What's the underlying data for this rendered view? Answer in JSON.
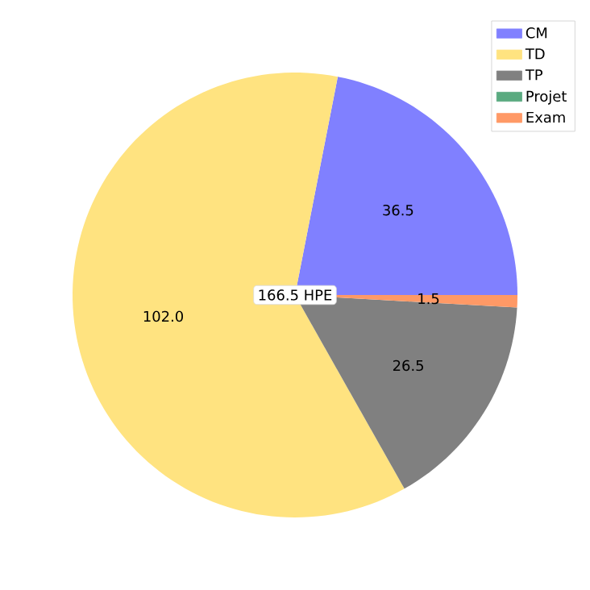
{
  "chart_data": {
    "type": "pie",
    "categories": [
      "CM",
      "TD",
      "TP",
      "Projet",
      "Exam"
    ],
    "values": [
      36.5,
      102.0,
      26.5,
      0,
      1.5
    ],
    "colors": [
      "#8080ff",
      "#ffe380",
      "#808080",
      "#5aaa80",
      "#ff9966"
    ],
    "value_labels": [
      "36.5",
      "102.0",
      "26.5",
      null,
      "1.5"
    ],
    "annotations": [
      "166.5 HPE"
    ],
    "legend": "top right"
  }
}
